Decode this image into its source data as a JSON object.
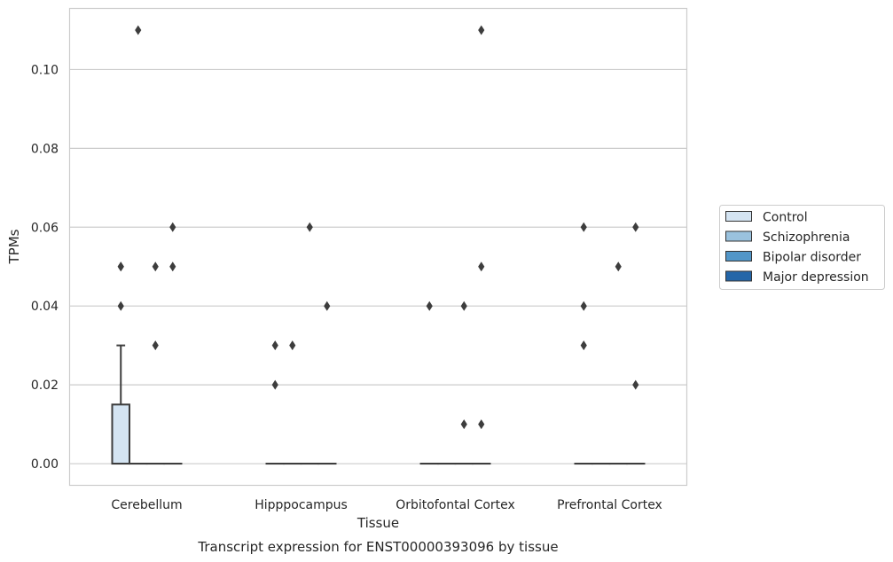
{
  "chart_data": {
    "type": "box",
    "title": "",
    "caption": "Transcript expression for ENST00000393096 by tissue",
    "xlabel": "Tissue",
    "ylabel": "TPMs",
    "ylim": [
      -0.0055,
      0.1155
    ],
    "yticks": [
      "0.00",
      "0.02",
      "0.04",
      "0.06",
      "0.08",
      "0.10"
    ],
    "grid": "horizontal",
    "legend_position": "right",
    "categories": [
      "Cerebellum",
      "Hipppocampus",
      "Orbitofontal Cortex",
      "Prefrontal Cortex"
    ],
    "series": [
      {
        "name": "Control",
        "color": "#d4e4f2",
        "boxes": [
          {
            "q1": 0.0,
            "median": 0.0,
            "q3": 0.015,
            "whisker_low": 0.0,
            "whisker_high": 0.03,
            "outliers": [
              0.04,
              0.05,
              0.05
            ]
          },
          {
            "q1": 0.0,
            "median": 0.0,
            "q3": 0.0,
            "whisker_low": 0.0,
            "whisker_high": 0.0,
            "outliers": [
              0.02,
              0.03
            ]
          },
          {
            "q1": 0.0,
            "median": 0.0,
            "q3": 0.0,
            "whisker_low": 0.0,
            "whisker_high": 0.0,
            "outliers": [
              0.04
            ]
          },
          {
            "q1": 0.0,
            "median": 0.0,
            "q3": 0.0,
            "whisker_low": 0.0,
            "whisker_high": 0.0,
            "outliers": [
              0.03,
              0.04,
              0.06
            ]
          }
        ]
      },
      {
        "name": "Schizophrenia",
        "color": "#9ac2de",
        "boxes": [
          {
            "q1": 0.0,
            "median": 0.0,
            "q3": 0.0,
            "whisker_low": 0.0,
            "whisker_high": 0.0,
            "outliers": [
              0.11
            ]
          },
          {
            "q1": 0.0,
            "median": 0.0,
            "q3": 0.0,
            "whisker_low": 0.0,
            "whisker_high": 0.0,
            "outliers": [
              0.03
            ]
          },
          {
            "q1": 0.0,
            "median": 0.0,
            "q3": 0.0,
            "whisker_low": 0.0,
            "whisker_high": 0.0,
            "outliers": []
          },
          {
            "q1": 0.0,
            "median": 0.0,
            "q3": 0.0,
            "whisker_low": 0.0,
            "whisker_high": 0.0,
            "outliers": []
          }
        ]
      },
      {
        "name": "Bipolar disorder",
        "color": "#5296c8",
        "boxes": [
          {
            "q1": 0.0,
            "median": 0.0,
            "q3": 0.0,
            "whisker_low": 0.0,
            "whisker_high": 0.0,
            "outliers": [
              0.03,
              0.05
            ]
          },
          {
            "q1": 0.0,
            "median": 0.0,
            "q3": 0.0,
            "whisker_low": 0.0,
            "whisker_high": 0.0,
            "outliers": [
              0.06
            ]
          },
          {
            "q1": 0.0,
            "median": 0.0,
            "q3": 0.0,
            "whisker_low": 0.0,
            "whisker_high": 0.0,
            "outliers": [
              0.01,
              0.04
            ]
          },
          {
            "q1": 0.0,
            "median": 0.0,
            "q3": 0.0,
            "whisker_low": 0.0,
            "whisker_high": 0.0,
            "outliers": [
              0.05
            ]
          }
        ]
      },
      {
        "name": "Major depression",
        "color": "#2466a8",
        "boxes": [
          {
            "q1": 0.0,
            "median": 0.0,
            "q3": 0.0,
            "whisker_low": 0.0,
            "whisker_high": 0.0,
            "outliers": [
              0.05,
              0.06
            ]
          },
          {
            "q1": 0.0,
            "median": 0.0,
            "q3": 0.0,
            "whisker_low": 0.0,
            "whisker_high": 0.0,
            "outliers": [
              0.04
            ]
          },
          {
            "q1": 0.0,
            "median": 0.0,
            "q3": 0.0,
            "whisker_low": 0.0,
            "whisker_high": 0.0,
            "outliers": [
              0.01,
              0.05,
              0.11
            ]
          },
          {
            "q1": 0.0,
            "median": 0.0,
            "q3": 0.0,
            "whisker_low": 0.0,
            "whisker_high": 0.0,
            "outliers": [
              0.02,
              0.06
            ]
          }
        ]
      }
    ]
  }
}
